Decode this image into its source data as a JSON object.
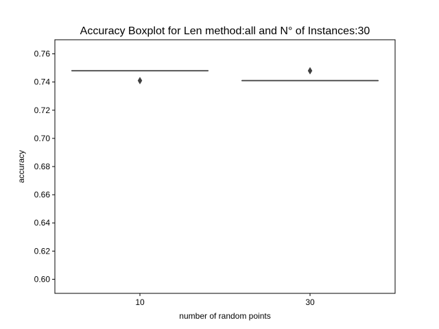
{
  "chart_data": {
    "type": "boxplot",
    "title": "Accuracy Boxplot for Len method:all and N° of Instances:30",
    "xlabel": "number of random points",
    "ylabel": "accuracy",
    "categories": [
      "10",
      "30"
    ],
    "ylim": [
      0.59,
      0.77
    ],
    "yticks": [
      0.6,
      0.62,
      0.64,
      0.66,
      0.68,
      0.7,
      0.72,
      0.74,
      0.76
    ],
    "ytick_labels": [
      "0.60",
      "0.62",
      "0.64",
      "0.66",
      "0.68",
      "0.70",
      "0.72",
      "0.74",
      "0.76"
    ],
    "boxes": [
      {
        "category": "10",
        "q1": 0.748,
        "median": 0.748,
        "q3": 0.748,
        "whisker_low": 0.748,
        "whisker_high": 0.748,
        "outliers": [
          0.741
        ]
      },
      {
        "category": "30",
        "q1": 0.741,
        "median": 0.741,
        "q3": 0.741,
        "whisker_low": 0.741,
        "whisker_high": 0.741,
        "outliers": [
          0.748
        ]
      }
    ],
    "grid": false,
    "colors": {
      "box_line": "#3f3f3f",
      "outlier": "#3f3f3f"
    }
  }
}
